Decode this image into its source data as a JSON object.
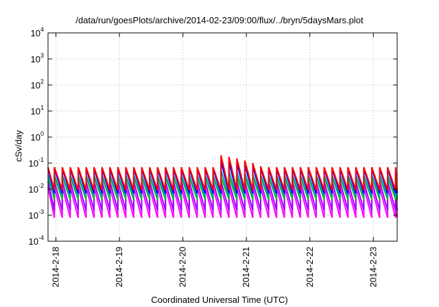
{
  "chart_data": {
    "type": "line",
    "title": "/data/run/goesPlots/archive/2014-02-23/09:00/flux/../bryn/5daysMars.plot",
    "xlabel": "Coordinated Universal Time (UTC)",
    "ylabel": "cSv/day",
    "y_scale": "log",
    "ylim": [
      0.0001,
      10000
    ],
    "xlim": [
      "2014-02-17T21:00",
      "2014-02-23T09:00"
    ],
    "grid": true,
    "legend": "none",
    "y_ticks": [
      {
        "base": "10",
        "exp": "-4",
        "value": 0.0001
      },
      {
        "base": "10",
        "exp": "-3",
        "value": 0.001
      },
      {
        "base": "10",
        "exp": "-2",
        "value": 0.01
      },
      {
        "base": "10",
        "exp": "-1",
        "value": 0.1
      },
      {
        "base": "10",
        "exp": "0",
        "value": 1
      },
      {
        "base": "10",
        "exp": "1",
        "value": 10
      },
      {
        "base": "10",
        "exp": "2",
        "value": 100
      },
      {
        "base": "10",
        "exp": "3",
        "value": 1000
      },
      {
        "base": "10",
        "exp": "4",
        "value": 10000
      }
    ],
    "x_ticks": [
      {
        "label": "2014-2-18",
        "date": "2014-02-18T00:00"
      },
      {
        "label": "2014-2-19",
        "date": "2014-02-19T00:00"
      },
      {
        "label": "2014-2-20",
        "date": "2014-02-20T00:00"
      },
      {
        "label": "2014-2-21",
        "date": "2014-02-21T00:00"
      },
      {
        "label": "2014-2-22",
        "date": "2014-02-22T00:00"
      },
      {
        "label": "2014-2-23",
        "date": "2014-02-23T00:00"
      }
    ],
    "sawtooth_period_hours": 3,
    "series": [
      {
        "color": "#ff0000",
        "peak": 0.07,
        "trough": 0.009
      },
      {
        "color": "#0000ff",
        "peak": 0.06,
        "trough": 0.007
      },
      {
        "color": "#00a0a0",
        "peak": 0.035,
        "trough": 0.005
      },
      {
        "color": "#00c000",
        "peak": 0.03,
        "trough": 0.004
      },
      {
        "color": "#9a00ff",
        "peak": 0.02,
        "trough": 0.0015
      },
      {
        "color": "#ff00ff",
        "peak": 0.012,
        "trough": 0.0008
      }
    ],
    "event": {
      "start": "2014-02-20T12:00",
      "end": "2014-02-21T06:00",
      "peak_red": 0.22,
      "peak_blue": 0.13
    }
  }
}
